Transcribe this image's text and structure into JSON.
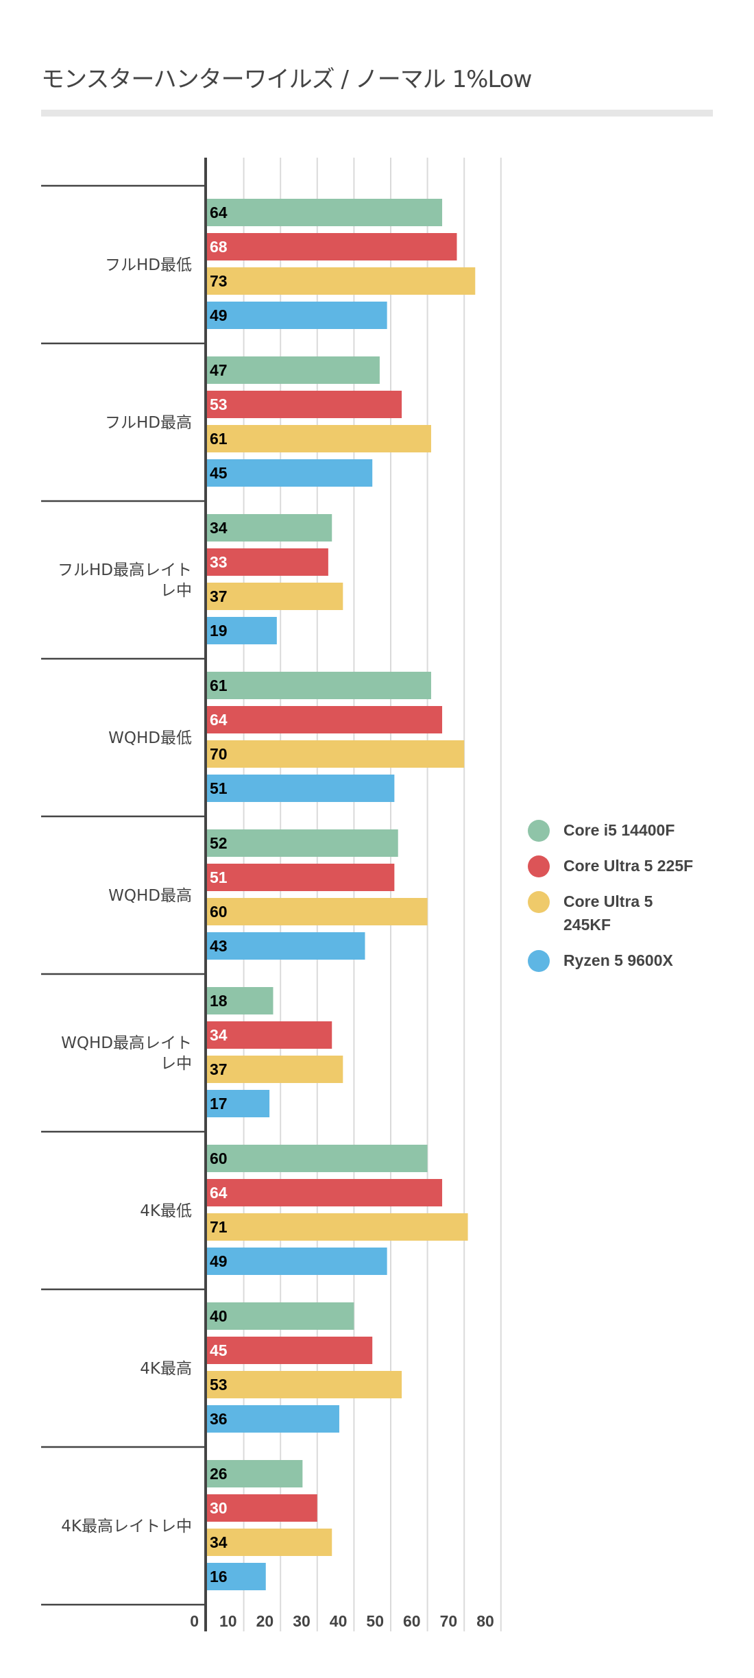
{
  "chart_data": {
    "type": "bar",
    "orientation": "horizontal",
    "title": "モンスターハンターワイルズ / ノーマル 1%Low",
    "xlabel": "",
    "ylabel": "",
    "xlim": [
      0,
      80
    ],
    "ticks": [
      "0",
      "10",
      "20",
      "30",
      "40",
      "50",
      "60",
      "70",
      "80"
    ],
    "grid": true,
    "legend_position": "right",
    "categories": [
      "フルHD最低",
      "フルHD最高",
      "フルHD最高レイトレ中",
      "WQHD最低",
      "WQHD最高",
      "WQHD最高レイトレ中",
      "4K最低",
      "4K最高",
      "4K最高レイトレ中"
    ],
    "category_lines": [
      [
        "フルHD最低"
      ],
      [
        "フルHD最高"
      ],
      [
        "フルHD最高レイト",
        "レ中"
      ],
      [
        "WQHD最低"
      ],
      [
        "WQHD最高"
      ],
      [
        "WQHD最高レイト",
        "レ中"
      ],
      [
        "4K最低"
      ],
      [
        "4K最高"
      ],
      [
        "4K最高レイトレ中"
      ]
    ],
    "series": [
      {
        "name": "Core i5 14400F",
        "legend_lines": [
          "Core i5 14400F"
        ],
        "color": "#8fc4a8",
        "label_color": "#000000",
        "values": [
          64,
          47,
          34,
          61,
          52,
          18,
          60,
          40,
          26
        ]
      },
      {
        "name": "Core Ultra 5 225F",
        "legend_lines": [
          "Core Ultra 5 225F"
        ],
        "color": "#dc5457",
        "label_color": "#ffffff",
        "values": [
          68,
          53,
          33,
          64,
          51,
          34,
          64,
          45,
          30
        ]
      },
      {
        "name": "Core Ultra 5 245KF",
        "legend_lines": [
          "Core Ultra 5",
          "245KF"
        ],
        "color": "#efca6a",
        "label_color": "#000000",
        "values": [
          73,
          61,
          37,
          70,
          60,
          37,
          71,
          53,
          34
        ]
      },
      {
        "name": "Ryzen 5 9600X",
        "legend_lines": [
          "Ryzen 5 9600X"
        ],
        "color": "#5eb6e4",
        "label_color": "#000000",
        "values": [
          49,
          45,
          19,
          51,
          43,
          17,
          49,
          36,
          16
        ]
      }
    ]
  },
  "colors": {
    "axis": "#444444",
    "grid": "#dadada",
    "text": "#444444"
  }
}
